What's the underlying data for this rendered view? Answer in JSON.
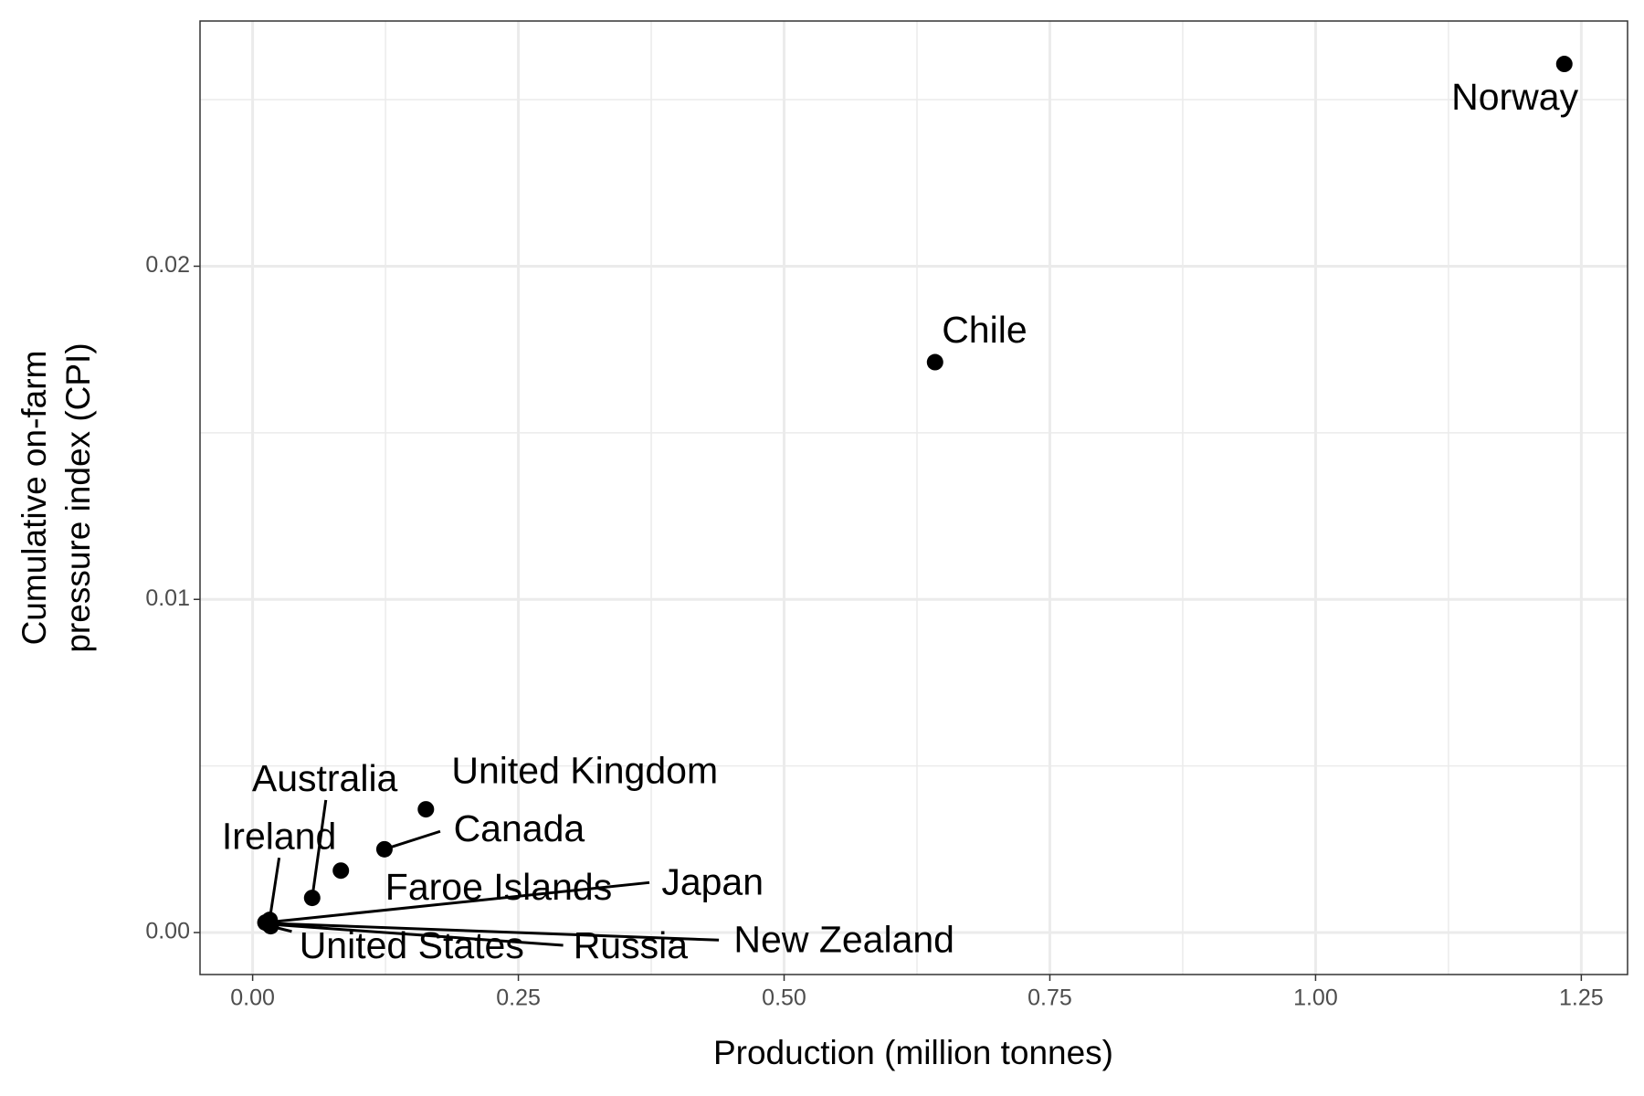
{
  "chart_data": {
    "type": "scatter",
    "x_label": "Production (million tonnes)",
    "y_label": [
      "Cumulative on-farm",
      "pressure index (CPI)"
    ],
    "labels": [
      "Norway",
      "Chile",
      "United Kingdom",
      "Canada",
      "Faroe Islands",
      "Australia",
      "Ireland",
      "Japan",
      "New Zealand",
      "Russia",
      "United States"
    ],
    "x": [
      1.234,
      0.642,
      0.163,
      0.124,
      0.083,
      0.056,
      0.016,
      0.012,
      0.014,
      0.015,
      0.017
    ],
    "y": [
      0.02607,
      0.01712,
      0.0037,
      0.0025,
      0.00186,
      0.00104,
      0.00038,
      0.0003,
      0.00028,
      0.00025,
      0.00019
    ],
    "color": "#000000",
    "xlim": [
      -0.0495,
      1.2935
    ],
    "ylim": [
      -0.00126,
      0.02736
    ],
    "xticks": [
      {
        "value": 0,
        "label": "0.00"
      },
      {
        "value": 0.25,
        "label": "0.25"
      },
      {
        "value": 0.5,
        "label": "0.50"
      },
      {
        "value": 0.75,
        "label": "0.75"
      },
      {
        "value": 1,
        "label": "1.00"
      },
      {
        "value": 1.25,
        "label": "1.25"
      }
    ],
    "yticks": [
      {
        "value": 0,
        "label": "0.00"
      },
      {
        "value": 0.01,
        "label": "0.01"
      },
      {
        "value": 0.02,
        "label": "0.02"
      }
    ],
    "grid": true
  }
}
